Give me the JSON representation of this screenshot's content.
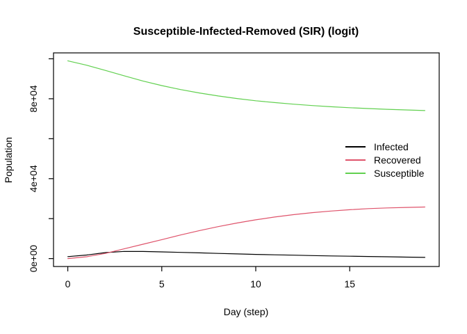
{
  "title": "Susceptible-Infected-Removed (SIR) (logit)",
  "axes": {
    "x": {
      "label": "Day (step)",
      "ticks": [
        {
          "value": 0,
          "label": "0"
        },
        {
          "value": 5,
          "label": "5"
        },
        {
          "value": 10,
          "label": "10"
        },
        {
          "value": 15,
          "label": "15"
        }
      ]
    },
    "y": {
      "label": "Population",
      "ticks": [
        {
          "value": 0,
          "label": "0e+00"
        },
        {
          "value": 20000,
          "label": ""
        },
        {
          "value": 40000,
          "label": "4e+04"
        },
        {
          "value": 60000,
          "label": ""
        },
        {
          "value": 80000,
          "label": "8e+04"
        },
        {
          "value": 100000,
          "label": ""
        }
      ]
    }
  },
  "legend": {
    "items": [
      {
        "label": "Infected",
        "color": "#000000"
      },
      {
        "label": "Recovered",
        "color": "#DF536B"
      },
      {
        "label": "Susceptible",
        "color": "#61D04F"
      }
    ]
  },
  "chart_data": {
    "type": "line",
    "title": "Susceptible-Infected-Removed (SIR) (logit)",
    "xlabel": "Day (step)",
    "ylabel": "Population",
    "xlim": [
      0,
      19
    ],
    "ylim": [
      0,
      99000
    ],
    "grid": false,
    "legend_position": "right",
    "x": [
      0,
      1,
      2,
      3,
      4,
      5,
      6,
      7,
      8,
      9,
      10,
      11,
      12,
      13,
      14,
      15,
      16,
      17,
      18,
      19
    ],
    "series": [
      {
        "name": "Infected",
        "color": "#000000",
        "values": [
          1000,
          1800,
          3000,
          3600,
          3550,
          3350,
          3100,
          2850,
          2600,
          2350,
          2100,
          1900,
          1700,
          1500,
          1350,
          1200,
          1050,
          900,
          750,
          600
        ]
      },
      {
        "name": "Recovered",
        "color": "#DF536B",
        "values": [
          0,
          900,
          2600,
          4900,
          7200,
          9500,
          11800,
          14000,
          16000,
          17800,
          19400,
          20800,
          22000,
          23000,
          23800,
          24450,
          25000,
          25350,
          25600,
          25800
        ]
      },
      {
        "name": "Susceptible",
        "color": "#61D04F",
        "values": [
          99000,
          96800,
          94200,
          91500,
          88900,
          86600,
          84600,
          82900,
          81400,
          80100,
          79000,
          78100,
          77300,
          76600,
          76000,
          75500,
          75100,
          74700,
          74400,
          74100
        ]
      }
    ]
  }
}
